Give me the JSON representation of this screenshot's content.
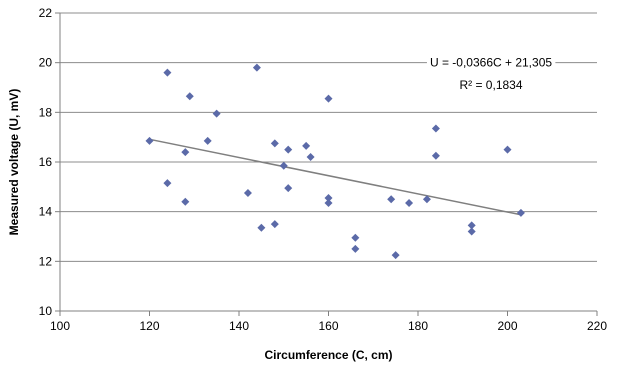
{
  "chart_data": {
    "type": "scatter",
    "xlabel": "Circumference (C, cm)",
    "ylabel": "Measured voltage (U, mV)",
    "xlim": [
      100,
      220
    ],
    "ylim": [
      10,
      22
    ],
    "x_ticks": [
      100,
      120,
      140,
      160,
      180,
      200,
      220
    ],
    "y_ticks": [
      10,
      12,
      14,
      16,
      18,
      20,
      22
    ],
    "grid": {
      "horizontal": true,
      "vertical": false
    },
    "marker": {
      "shape": "diamond",
      "color": "#5b6aa8"
    },
    "trendline": {
      "type": "linear",
      "slope": -0.0366,
      "intercept": 21.305,
      "x_range": [
        120,
        203
      ],
      "color": "#7f7f7f"
    },
    "annotations": {
      "equation": "U = -0,0366C + 21,305",
      "r_squared": "R² = 0,1834"
    },
    "points": [
      {
        "x": 120,
        "y": 16.85
      },
      {
        "x": 124,
        "y": 19.6
      },
      {
        "x": 124,
        "y": 15.15
      },
      {
        "x": 128,
        "y": 16.4
      },
      {
        "x": 128,
        "y": 14.4
      },
      {
        "x": 129,
        "y": 18.65
      },
      {
        "x": 133,
        "y": 16.85
      },
      {
        "x": 135,
        "y": 17.95
      },
      {
        "x": 142,
        "y": 14.75
      },
      {
        "x": 144,
        "y": 19.8
      },
      {
        "x": 145,
        "y": 13.35
      },
      {
        "x": 148,
        "y": 16.75
      },
      {
        "x": 148,
        "y": 13.5
      },
      {
        "x": 150,
        "y": 15.85
      },
      {
        "x": 151,
        "y": 16.5
      },
      {
        "x": 151,
        "y": 14.95
      },
      {
        "x": 155,
        "y": 16.65
      },
      {
        "x": 156,
        "y": 16.2
      },
      {
        "x": 160,
        "y": 18.55
      },
      {
        "x": 160,
        "y": 14.55
      },
      {
        "x": 160,
        "y": 14.35
      },
      {
        "x": 166,
        "y": 12.95
      },
      {
        "x": 166,
        "y": 12.5
      },
      {
        "x": 174,
        "y": 14.5
      },
      {
        "x": 175,
        "y": 12.25
      },
      {
        "x": 178,
        "y": 14.35
      },
      {
        "x": 182,
        "y": 14.5
      },
      {
        "x": 184,
        "y": 17.35
      },
      {
        "x": 184,
        "y": 16.25
      },
      {
        "x": 192,
        "y": 13.45
      },
      {
        "x": 192,
        "y": 13.2
      },
      {
        "x": 200,
        "y": 16.5
      },
      {
        "x": 203,
        "y": 13.95
      }
    ]
  }
}
